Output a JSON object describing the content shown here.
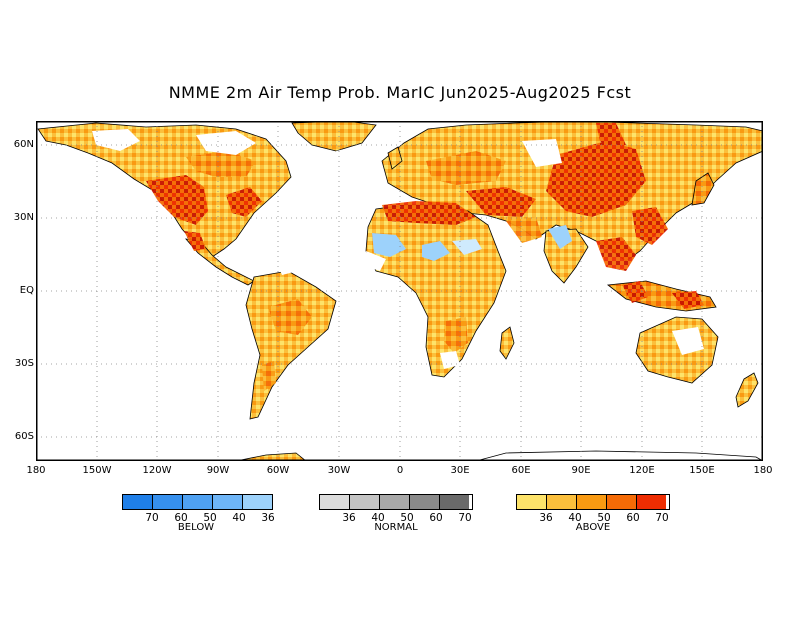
{
  "title": "NMME 2m Air Temp Prob. MarIC  Jun2025-Aug2025 Fcst",
  "lat_labels": [
    "60N",
    "30N",
    "EQ",
    "30S",
    "60S"
  ],
  "lon_labels": [
    "180",
    "150W",
    "120W",
    "90W",
    "60W",
    "30W",
    "0",
    "30E",
    "60E",
    "90E",
    "120E",
    "150E",
    "180"
  ],
  "legends": [
    {
      "name": "BELOW",
      "colors": [
        "#1f7fe8",
        "#3690ee",
        "#4fa1f2",
        "#6eb5f7",
        "#9dd2fb"
      ],
      "ticks": [
        "70",
        "60",
        "50",
        "40",
        "36"
      ]
    },
    {
      "name": "NORMAL",
      "colors": [
        "#dcdcdc",
        "#c4c4c4",
        "#a8a8a8",
        "#8a8a8a",
        "#6a6a6a"
      ],
      "ticks": [
        "36",
        "40",
        "50",
        "60",
        "70"
      ]
    },
    {
      "name": "ABOVE",
      "colors": [
        "#fde36a",
        "#fbbf3c",
        "#f99a12",
        "#f56b06",
        "#ee2d02"
      ],
      "ticks": [
        "36",
        "40",
        "50",
        "60",
        "70"
      ]
    }
  ],
  "colors": {
    "ocean": "#ffffff",
    "grid": "#888888",
    "coast": "#000000"
  }
}
